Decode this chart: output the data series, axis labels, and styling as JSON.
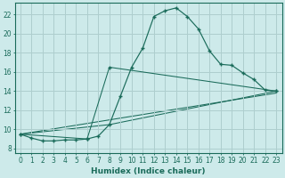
{
  "bg_color": "#cdeaea",
  "grid_color": "#aecece",
  "line_color": "#1a6b5a",
  "xlabel": "Humidex (Indice chaleur)",
  "xlabel_fontsize": 6.5,
  "tick_fontsize": 5.5,
  "xlim": [
    -0.5,
    23.5
  ],
  "ylim": [
    7.5,
    23.2
  ],
  "xticks": [
    0,
    1,
    2,
    3,
    4,
    5,
    6,
    7,
    8,
    9,
    10,
    11,
    12,
    13,
    14,
    15,
    16,
    17,
    18,
    19,
    20,
    21,
    22,
    23
  ],
  "yticks": [
    8,
    10,
    12,
    14,
    16,
    18,
    20,
    22
  ],
  "series_main": [
    [
      0,
      9.5
    ],
    [
      1,
      9.1
    ],
    [
      2,
      8.8
    ],
    [
      3,
      8.8
    ],
    [
      4,
      8.9
    ],
    [
      5,
      8.9
    ],
    [
      6,
      9.0
    ],
    [
      7,
      9.3
    ],
    [
      8,
      10.5
    ],
    [
      9,
      13.5
    ],
    [
      10,
      16.5
    ],
    [
      11,
      18.5
    ],
    [
      12,
      21.8
    ],
    [
      13,
      22.4
    ],
    [
      14,
      22.7
    ],
    [
      15,
      21.8
    ],
    [
      16,
      20.5
    ],
    [
      17,
      18.2
    ],
    [
      18,
      16.8
    ],
    [
      19,
      16.7
    ],
    [
      20,
      15.9
    ],
    [
      21,
      15.2
    ],
    [
      22,
      14.1
    ],
    [
      23,
      14.0
    ]
  ],
  "line_flat": [
    [
      0,
      9.5
    ],
    [
      23,
      13.8
    ]
  ],
  "line_mid": [
    [
      0,
      9.5
    ],
    [
      8,
      10.5
    ],
    [
      23,
      14.0
    ]
  ],
  "line_steep": [
    [
      0,
      9.5
    ],
    [
      6,
      9.0
    ],
    [
      8,
      16.5
    ],
    [
      23,
      14.0
    ]
  ]
}
